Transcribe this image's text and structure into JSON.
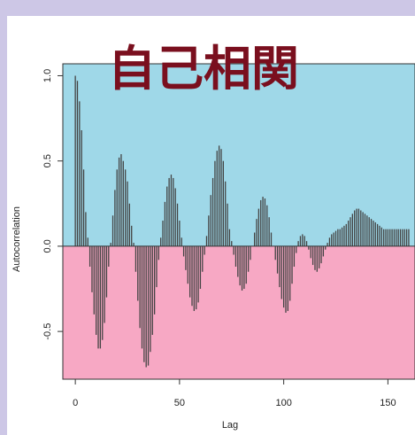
{
  "colors": {
    "page_background": "#cdc7e6",
    "positive_region": "#9fd8e8",
    "negative_region": "#f7a8c4",
    "bars": "#444444",
    "title": "#7a0f1e"
  },
  "chart_data": {
    "type": "bar",
    "title": "自己相関",
    "xlabel": "Lag",
    "ylabel": "Autocorrelation",
    "xlim": [
      -6,
      163
    ],
    "ylim": [
      -0.78,
      1.07
    ],
    "x_ticks": [
      0,
      50,
      100,
      150
    ],
    "x_tick_labels": [
      "0",
      "50",
      "100",
      "150"
    ],
    "y_ticks": [
      -0.5,
      0.0,
      0.5,
      1.0
    ],
    "y_tick_labels": [
      "-0.5",
      "0.0",
      "0.5",
      "1.0"
    ],
    "grid": false,
    "background_bands": [
      {
        "from": 0,
        "to": 1.07,
        "color": "#9fd8e8"
      },
      {
        "from": -0.78,
        "to": 0,
        "color": "#f7a8c4"
      }
    ],
    "lags": [
      0,
      1,
      2,
      3,
      4,
      5,
      6,
      7,
      8,
      9,
      10,
      11,
      12,
      13,
      14,
      15,
      16,
      17,
      18,
      19,
      20,
      21,
      22,
      23,
      24,
      25,
      26,
      27,
      28,
      29,
      30,
      31,
      32,
      33,
      34,
      35,
      36,
      37,
      38,
      39,
      40,
      41,
      42,
      43,
      44,
      45,
      46,
      47,
      48,
      49,
      50,
      51,
      52,
      53,
      54,
      55,
      56,
      57,
      58,
      59,
      60,
      61,
      62,
      63,
      64,
      65,
      66,
      67,
      68,
      69,
      70,
      71,
      72,
      73,
      74,
      75,
      76,
      77,
      78,
      79,
      80,
      81,
      82,
      83,
      84,
      85,
      86,
      87,
      88,
      89,
      90,
      91,
      92,
      93,
      94,
      95,
      96,
      97,
      98,
      99,
      100,
      101,
      102,
      103,
      104,
      105,
      106,
      107,
      108,
      109,
      110,
      111,
      112,
      113,
      114,
      115,
      116,
      117,
      118,
      119,
      120,
      121,
      122,
      123,
      124,
      125,
      126,
      127,
      128,
      129,
      130,
      131,
      132,
      133,
      134,
      135,
      136,
      137,
      138,
      139,
      140,
      141,
      142,
      143,
      144,
      145,
      146,
      147,
      148,
      149,
      150,
      151,
      152,
      153,
      154,
      155,
      156,
      157,
      158,
      159,
      160
    ],
    "values": [
      1.0,
      0.97,
      0.85,
      0.68,
      0.45,
      0.2,
      0.05,
      -0.12,
      -0.27,
      -0.4,
      -0.52,
      -0.6,
      -0.6,
      -0.55,
      -0.45,
      -0.3,
      -0.12,
      0.02,
      0.18,
      0.33,
      0.45,
      0.52,
      0.54,
      0.5,
      0.45,
      0.38,
      0.25,
      0.12,
      0.02,
      -0.15,
      -0.32,
      -0.48,
      -0.6,
      -0.68,
      -0.71,
      -0.7,
      -0.62,
      -0.52,
      -0.4,
      -0.24,
      -0.08,
      0.05,
      0.15,
      0.26,
      0.35,
      0.4,
      0.42,
      0.4,
      0.34,
      0.25,
      0.15,
      0.05,
      -0.06,
      -0.14,
      -0.22,
      -0.3,
      -0.35,
      -0.38,
      -0.37,
      -0.33,
      -0.25,
      -0.15,
      -0.05,
      0.06,
      0.18,
      0.3,
      0.4,
      0.5,
      0.56,
      0.59,
      0.57,
      0.5,
      0.38,
      0.25,
      0.1,
      0.03,
      -0.05,
      -0.12,
      -0.18,
      -0.23,
      -0.26,
      -0.25,
      -0.22,
      -0.15,
      -0.08,
      0.0,
      0.08,
      0.16,
      0.22,
      0.27,
      0.29,
      0.28,
      0.24,
      0.17,
      0.08,
      0.0,
      -0.08,
      -0.16,
      -0.24,
      -0.31,
      -0.36,
      -0.39,
      -0.38,
      -0.32,
      -0.22,
      -0.12,
      -0.04,
      0.03,
      0.06,
      0.07,
      0.06,
      0.03,
      -0.02,
      -0.07,
      -0.11,
      -0.14,
      -0.15,
      -0.13,
      -0.1,
      -0.06,
      -0.02,
      0.02,
      0.05,
      0.07,
      0.08,
      0.09,
      0.1,
      0.1,
      0.11,
      0.12,
      0.13,
      0.15,
      0.17,
      0.19,
      0.21,
      0.22,
      0.22,
      0.21,
      0.2,
      0.19,
      0.18,
      0.17,
      0.16,
      0.15,
      0.14,
      0.13,
      0.12,
      0.11,
      0.1,
      0.1,
      0.1,
      0.1,
      0.1,
      0.1,
      0.1,
      0.1,
      0.1,
      0.1,
      0.1,
      0.1,
      0.1
    ]
  }
}
